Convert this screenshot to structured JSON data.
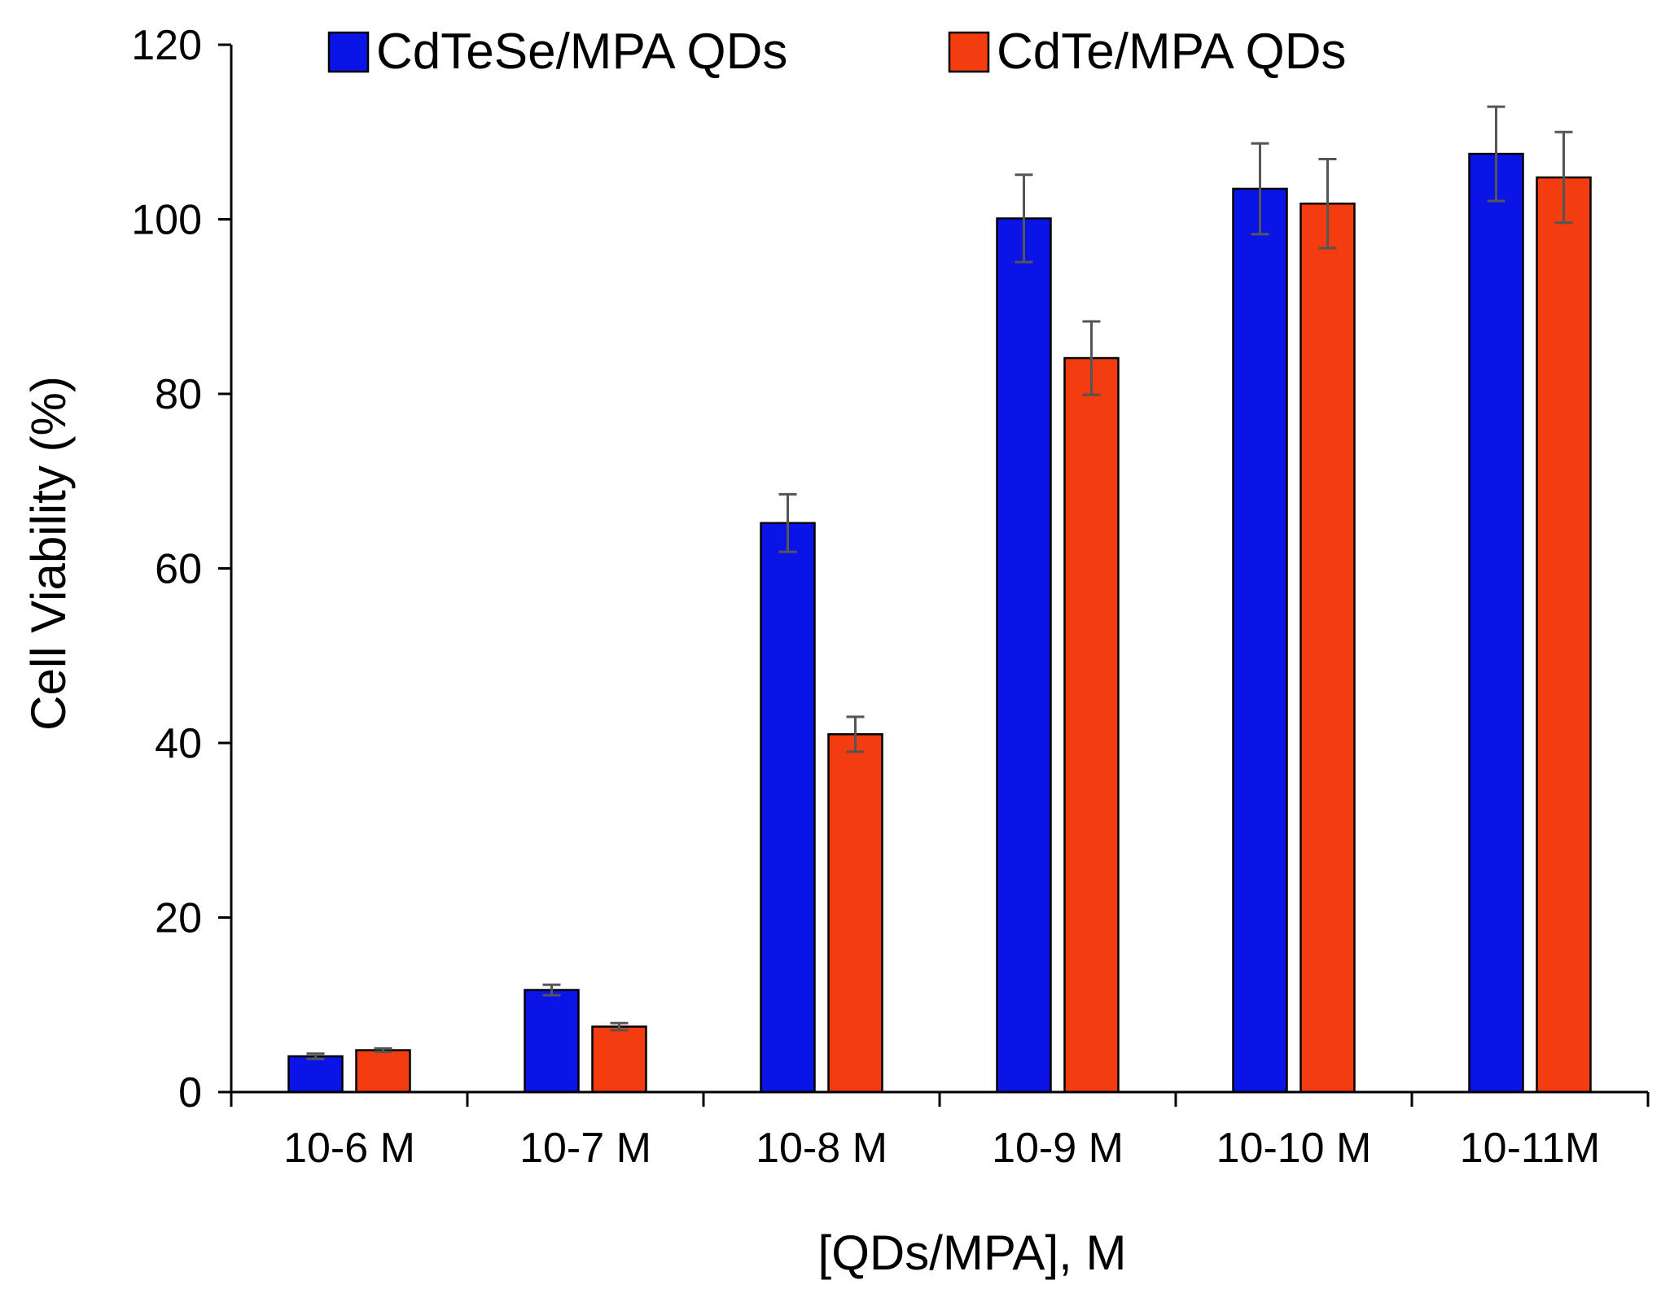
{
  "chart_data": {
    "type": "bar",
    "title": "",
    "xlabel": "[QDs/MPA], M",
    "ylabel": "Cell Viability (%)",
    "ylim": [
      0,
      120
    ],
    "yticks": [
      "0",
      "20",
      "40",
      "60",
      "80",
      "100",
      "120"
    ],
    "grid": false,
    "legend_position": "top",
    "categories": [
      "10-6 M",
      "10-7 M",
      "10-8 M",
      "10-9 M",
      "10-10 M",
      "10-11M"
    ],
    "series": [
      {
        "name": "CdTeSe/MPA QDs",
        "color": "#0a14e6",
        "values": [
          4.1,
          11.7,
          65.2,
          100.1,
          103.5,
          107.5
        ],
        "errors": [
          0.3,
          0.6,
          3.3,
          5.0,
          5.2,
          5.4
        ]
      },
      {
        "name": "CdTe/MPA QDs",
        "color": "#f33c10",
        "values": [
          4.8,
          7.5,
          41.0,
          84.1,
          101.8,
          104.8
        ],
        "errors": [
          0.2,
          0.4,
          2.0,
          4.2,
          5.1,
          5.2
        ]
      }
    ]
  }
}
